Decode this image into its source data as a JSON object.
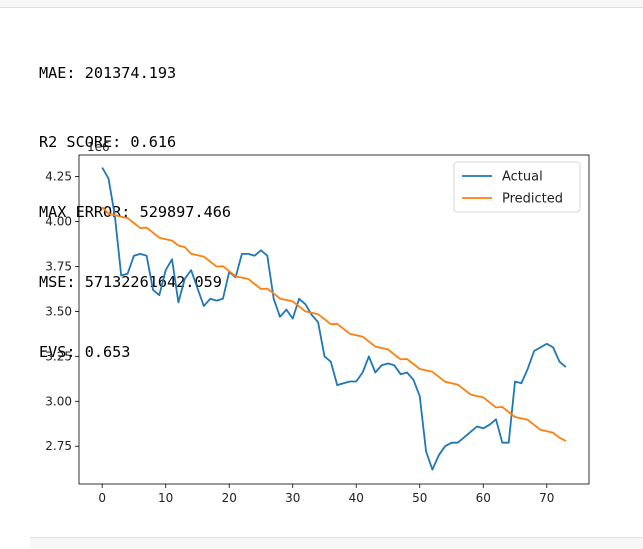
{
  "metrics": [
    "MAE: 201374.193",
    "R2 SCORE: 0.616",
    "MAX ERROR: 529897.466",
    "MSE: 57132261642.059",
    "EVS: 0.653"
  ],
  "chart_data": {
    "type": "line",
    "offset_text": "1e6",
    "xlim": [
      -3.65,
      76.65
    ],
    "ylim": [
      2.54,
      4.37
    ],
    "xticks": [
      0,
      10,
      20,
      30,
      40,
      50,
      60,
      70
    ],
    "yticks": [
      2.75,
      3.0,
      3.25,
      3.5,
      3.75,
      4.0,
      4.25
    ],
    "ytick_labels": [
      "2.75",
      "3.00",
      "3.25",
      "3.50",
      "3.75",
      "4.00",
      "4.25"
    ],
    "legend_position": "top-right",
    "series": [
      {
        "name": "Actual",
        "color": "#1f77b4",
        "x": [
          0,
          1,
          2,
          3,
          4,
          5,
          6,
          7,
          8,
          9,
          10,
          11,
          12,
          13,
          14,
          15,
          16,
          17,
          18,
          19,
          20,
          21,
          22,
          23,
          24,
          25,
          26,
          27,
          28,
          29,
          30,
          31,
          32,
          33,
          34,
          35,
          36,
          37,
          38,
          39,
          40,
          41,
          42,
          43,
          44,
          45,
          46,
          47,
          48,
          49,
          50,
          51,
          52,
          53,
          54,
          55,
          56,
          57,
          58,
          59,
          60,
          61,
          62,
          63,
          64,
          65,
          66,
          67,
          68,
          69,
          70,
          71,
          72,
          73
        ],
        "values": [
          4.3,
          4.24,
          4.03,
          3.7,
          3.71,
          3.81,
          3.82,
          3.81,
          3.62,
          3.59,
          3.73,
          3.79,
          3.55,
          3.68,
          3.73,
          3.63,
          3.53,
          3.57,
          3.56,
          3.57,
          3.72,
          3.69,
          3.82,
          3.82,
          3.81,
          3.84,
          3.81,
          3.57,
          3.47,
          3.51,
          3.46,
          3.57,
          3.54,
          3.48,
          3.44,
          3.25,
          3.22,
          3.09,
          3.1,
          3.11,
          3.11,
          3.16,
          3.25,
          3.16,
          3.2,
          3.21,
          3.2,
          3.15,
          3.16,
          3.12,
          3.03,
          2.72,
          2.62,
          2.7,
          2.75,
          2.77,
          2.77,
          2.8,
          2.83,
          2.86,
          2.85,
          2.87,
          2.9,
          2.77,
          2.77,
          3.11,
          3.1,
          3.18,
          3.28,
          3.3,
          3.32,
          3.3,
          3.22,
          3.19
        ]
      },
      {
        "name": "Predicted",
        "color": "#ff7f0e",
        "x": [
          0,
          73
        ],
        "values": [
          4.08,
          2.78
        ],
        "wobble": [
          0,
          -0.02,
          -0.01,
          0,
          0.01,
          0,
          -0.01,
          0.01,
          0,
          -0.01,
          0,
          0.01,
          0,
          0.01,
          -0.01,
          0,
          0.01,
          0,
          -0.01,
          0.01,
          0,
          -0.01,
          0,
          0.01,
          0,
          -0.01,
          0.01,
          0,
          -0.01,
          0,
          0.01,
          0,
          -0.01,
          0,
          0.01,
          0,
          -0.01,
          0.01,
          0,
          -0.01,
          0,
          0.01,
          0,
          -0.01,
          0,
          0.01,
          0,
          -0.01,
          0.01,
          0,
          -0.01,
          0,
          0.01,
          0,
          -0.01,
          0,
          0.01,
          0,
          -0.01,
          0,
          0.01,
          0,
          -0.01,
          0.01,
          0,
          -0.01,
          0,
          0.01,
          0,
          -0.01,
          0,
          0.01,
          0,
          0
        ]
      }
    ]
  }
}
